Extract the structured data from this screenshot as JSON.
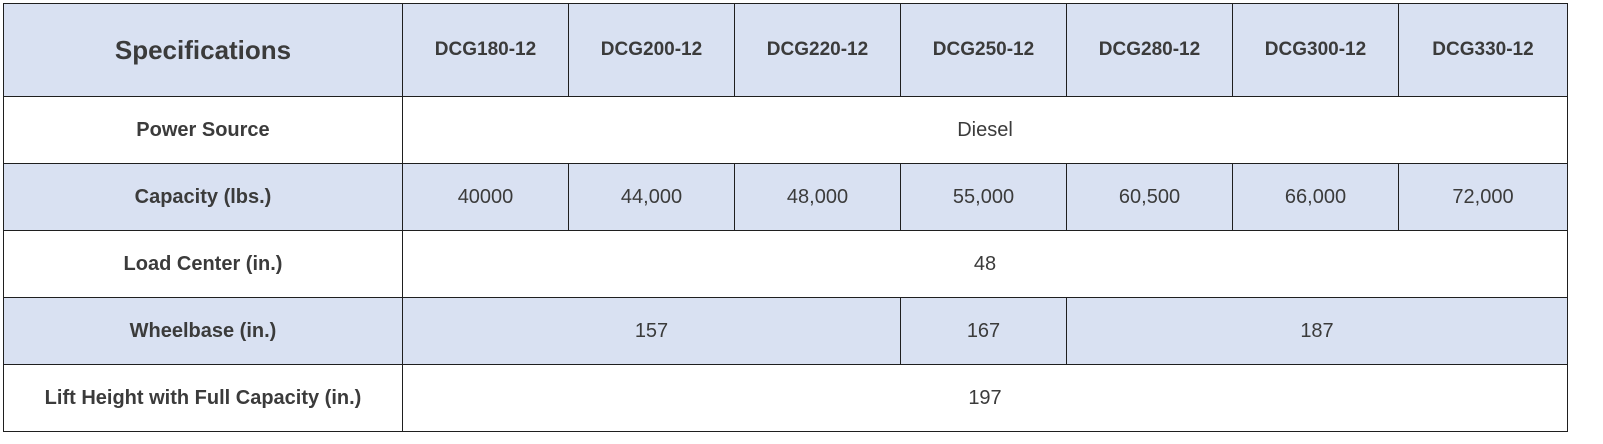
{
  "table": {
    "title": "Specifications",
    "models": [
      "DCG180-12",
      "DCG200-12",
      "DCG220-12",
      "DCG250-12",
      "DCG280-12",
      "DCG300-12",
      "DCG330-12"
    ],
    "power_source": {
      "label": "Power Source",
      "value": "Diesel"
    },
    "capacity": {
      "label": "Capacity (lbs.)",
      "values": [
        "40000",
        "44,000",
        "48,000",
        "55,000",
        "60,500",
        "66,000",
        "72,000"
      ]
    },
    "load_center": {
      "label": "Load Center (in.)",
      "value": "48"
    },
    "wheelbase": {
      "label": "Wheelbase (in.)",
      "values": [
        "157",
        "167",
        "187"
      ]
    },
    "lift_height": {
      "label": "Lift Height with Full Capacity (in.)",
      "value": "197"
    }
  },
  "colors": {
    "shaded_row": "#d9e1f2",
    "plain_row": "#ffffff",
    "border": "#1f1f1f",
    "text": "#3b3b3b"
  }
}
